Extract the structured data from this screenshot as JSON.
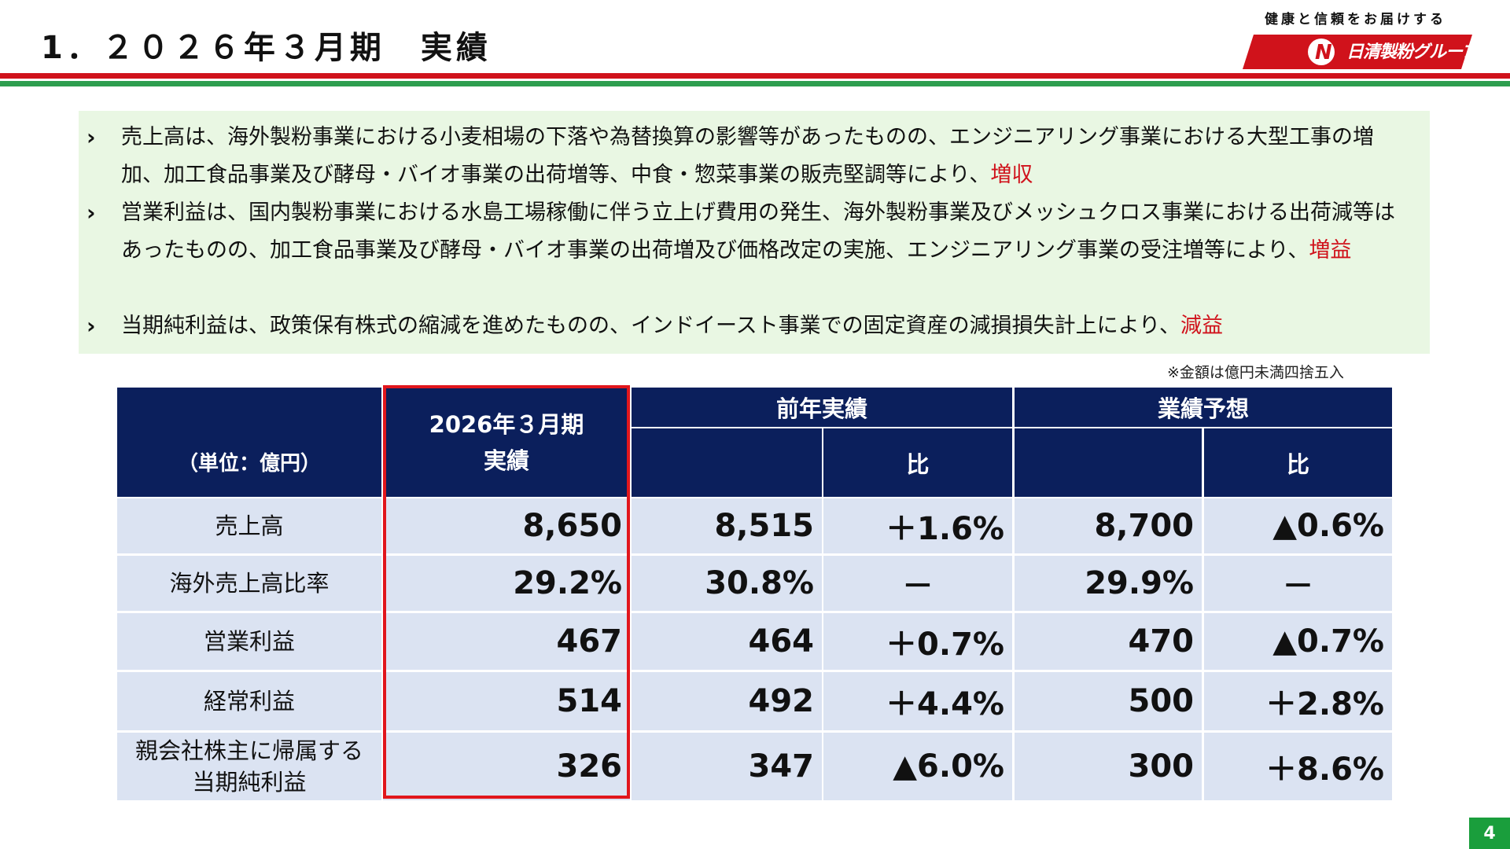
{
  "header": {
    "title": "1．２０２６年３月期　実績",
    "tagline": "健康と信頼をお届けする",
    "logo_text": "日清製粉グループ"
  },
  "summary": [
    {
      "text": "売上高は、海外製粉事業における小麦相場の下落や為替換算の影響等があったものの、エンジニアリング事業における大型工事の増加、加工食品事業及び酵母・バイオ事業の出荷増等、中食・惣菜事業の販売堅調等により、",
      "result": "増収"
    },
    {
      "text": "営業利益は、国内製粉事業における水島工場稼働に伴う立上げ費用の発生、海外製粉事業及びメッシュクロス事業における出荷減等はあったものの、加工食品事業及び酵母・バイオ事業の出荷増及び価格改定の実施、エンジニアリング事業の受注増等により、",
      "result": "増益"
    },
    {
      "text": "当期純利益は、政策保有株式の縮減を進めたものの、インドイースト事業での固定資産の減損損失計上により、",
      "result": "減益"
    }
  ],
  "note": "※金額は億円未満四捨五入",
  "table": {
    "unit": "（単位：億円）",
    "col_current_line1": "2026年３月期",
    "col_current_line2": "実績",
    "col_prev": "前年実績",
    "col_forecast": "業績予想",
    "col_ratio": "比",
    "rows": [
      {
        "label": "売上高",
        "current": "8,650",
        "prev": "8,515",
        "prev_ratio": "＋1.6%",
        "forecast": "8,700",
        "forecast_ratio": "▲0.6%"
      },
      {
        "label": "海外売上高比率",
        "current": "29.2%",
        "prev": "30.8%",
        "prev_ratio": "－",
        "forecast": "29.9%",
        "forecast_ratio": "－"
      },
      {
        "label": "営業利益",
        "current": "467",
        "prev": "464",
        "prev_ratio": "＋0.7%",
        "forecast": "470",
        "forecast_ratio": "▲0.7%"
      },
      {
        "label": "経常利益",
        "current": "514",
        "prev": "492",
        "prev_ratio": "＋4.4%",
        "forecast": "500",
        "forecast_ratio": "＋2.8%"
      },
      {
        "label_line1": "親会社株主に帰属する",
        "label_line2": "当期純利益",
        "current": "326",
        "prev": "347",
        "prev_ratio": "▲6.0%",
        "forecast": "300",
        "forecast_ratio": "＋8.6%"
      }
    ]
  },
  "page_number": "4",
  "colors": {
    "brand_red": "#d0121b",
    "brand_green": "#2e9e4f",
    "header_navy": "#0b1f5c",
    "row_blue": "#dbe3f2"
  }
}
